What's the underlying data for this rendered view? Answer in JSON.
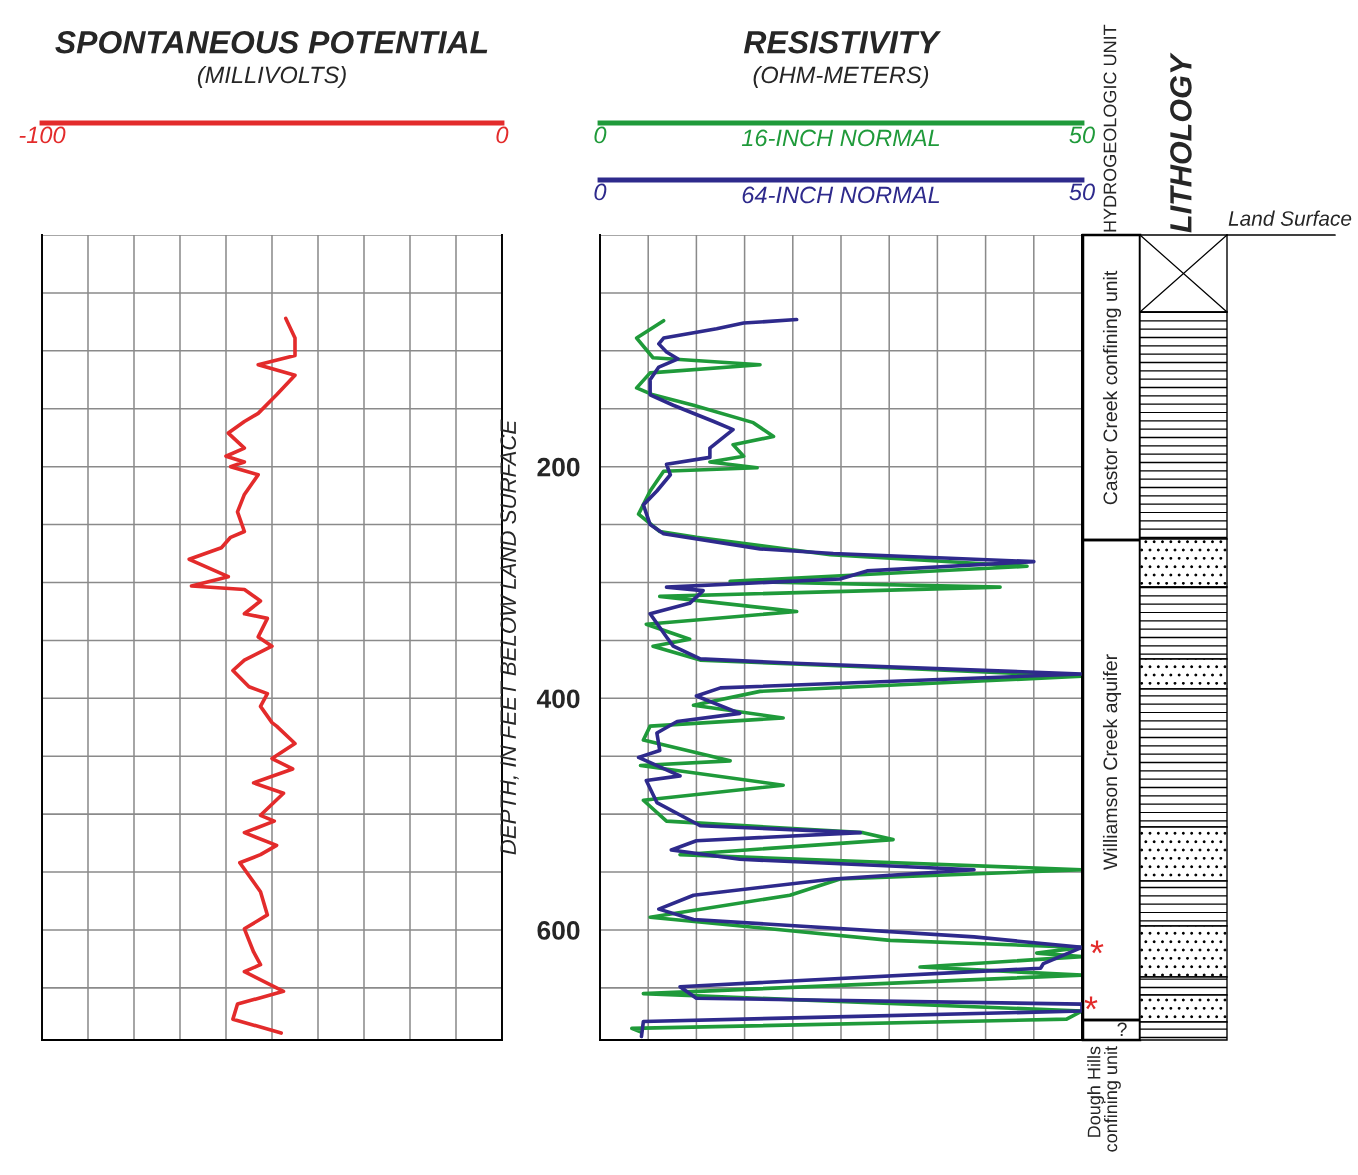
{
  "chart_data": [
    {
      "type": "line",
      "title": "SPONTANEOUS POTENTIAL",
      "subtitle": "(MILLIVOLTS)",
      "orientation": "horizontal",
      "xlim": [
        -100,
        0
      ],
      "xticks": [
        -100,
        {
          "value": -90,
          "label": null
        },
        {
          "value": -80,
          "label": null
        },
        {
          "value": -70,
          "label": null
        },
        {
          "value": -60,
          "label": null
        },
        {
          "value": -50,
          "label": null
        },
        {
          "value": -40,
          "label": null
        },
        {
          "value": -30,
          "label": null
        },
        {
          "value": -20,
          "label": null
        },
        {
          "value": -10,
          "label": null
        },
        0
      ],
      "ylim": [
        695,
        0
      ],
      "yticks": [
        {
          "value": 0,
          "label": null
        },
        {
          "value": 50,
          "label": null
        },
        {
          "value": 100,
          "label": null
        },
        {
          "value": 150,
          "label": null
        },
        {
          "value": 200,
          "label": null
        },
        {
          "value": 250,
          "label": null
        },
        {
          "value": 300,
          "label": null
        },
        {
          "value": 350,
          "label": null
        },
        {
          "value": 400,
          "label": null
        },
        {
          "value": 450,
          "label": null
        },
        {
          "value": 500,
          "label": null
        },
        {
          "value": 550,
          "label": null
        },
        {
          "value": 600,
          "label": null
        },
        {
          "value": 650,
          "label": null
        }
      ],
      "grid": true,
      "tick_labels": "x",
      "series": [
        {
          "color": "#e32b2b",
          "x": [
            72,
            89,
            104,
            112,
            121,
            138,
            154,
            161,
            171,
            184,
            191,
            196,
            200,
            207,
            224,
            239,
            256,
            261,
            270,
            280,
            295,
            303,
            306,
            316,
            327,
            331,
            347,
            355,
            367,
            376,
            390,
            396,
            407,
            421,
            424,
            439,
            452,
            461,
            473,
            482,
            501,
            506,
            516,
            527,
            535,
            542,
            567,
            587,
            599,
            619,
            630,
            636,
            653,
            664,
            677,
            689
          ],
          "values": [
            -47,
            -45,
            -45,
            -53,
            -45,
            -49,
            -53,
            -56,
            -59.5,
            -56,
            -60,
            -56,
            -59,
            -53,
            -56,
            -57.5,
            -56,
            -59,
            -61,
            -68,
            -59.5,
            -67.5,
            -56,
            -52.5,
            -56,
            -51,
            -53,
            -50,
            -56,
            -58.5,
            -55,
            -51,
            -52.5,
            -50,
            -49,
            -45,
            -50,
            -45.5,
            -54,
            -47.5,
            -52.5,
            -49.5,
            -56,
            -49,
            -52.5,
            -57,
            -52.5,
            -51,
            -56,
            -54,
            -52.5,
            -56,
            -47.5,
            -57.5,
            -58.5,
            -48
          ]
        }
      ]
    },
    {
      "type": "line",
      "title": "RESISTIVITY",
      "subtitle": "(OHM-METERS)",
      "ylabel": "DEPTH, IN FEET BELOW LAND SURFACE",
      "orientation": "horizontal",
      "xlim": [
        0,
        50
      ],
      "xticks": [
        0,
        {
          "value": 5,
          "label": null
        },
        {
          "value": 10,
          "label": null
        },
        {
          "value": 15,
          "label": null
        },
        {
          "value": 20,
          "label": null
        },
        {
          "value": 25,
          "label": null
        },
        {
          "value": 30,
          "label": null
        },
        {
          "value": 35,
          "label": null
        },
        {
          "value": 40,
          "label": null
        },
        {
          "value": 45,
          "label": null
        },
        50
      ],
      "x2lim": [
        0,
        50
      ],
      "x2ticks": [
        0,
        50
      ],
      "ylim": [
        695,
        0
      ],
      "yticks": [
        {
          "value": 0,
          "label": null
        },
        {
          "value": 50,
          "label": null
        },
        {
          "value": 100,
          "label": null
        },
        {
          "value": 150,
          "label": null
        },
        200,
        {
          "value": 250,
          "label": null
        },
        {
          "value": 300,
          "label": null
        },
        {
          "value": 350,
          "label": null
        },
        400,
        {
          "value": 450,
          "label": null
        },
        {
          "value": 500,
          "label": null
        },
        {
          "value": 550,
          "label": null
        },
        600,
        {
          "value": 650,
          "label": null
        }
      ],
      "grid": true,
      "series": [
        {
          "name": "16-INCH NORMAL",
          "color": "#1f9a3a",
          "x": [
            74,
            89,
            106,
            112,
            119,
            132,
            138,
            147,
            162,
            174,
            181,
            191,
            196,
            201,
            204,
            221,
            241,
            256,
            261,
            276,
            286,
            299,
            304,
            312,
            325,
            336,
            349,
            355,
            367,
            374,
            381,
            394,
            406,
            417,
            424,
            436,
            454,
            458,
            475,
            488,
            506,
            516,
            522,
            535,
            548,
            556,
            570,
            589,
            609,
            615,
            620,
            623,
            632,
            639,
            655,
            670,
            677,
            685,
            688
          ],
          "values": [
            6.6,
            3.8,
            5.5,
            16.6,
            5.2,
            3.8,
            5.5,
            9.7,
            15.9,
            18,
            13.8,
            14.9,
            11.4,
            16.3,
            6.6,
            5.2,
            4,
            6.2,
            10,
            23.9,
            44.3,
            13.5,
            41.5,
            6.2,
            20.4,
            4.8,
            9.3,
            5.5,
            10.4,
            31.1,
            50,
            16.6,
            9.7,
            19,
            5.2,
            4.5,
            13.5,
            4.2,
            19,
            4.5,
            6.9,
            27.3,
            30.4,
            8.3,
            50,
            24.9,
            19.7,
            5.2,
            30.1,
            50,
            45.3,
            50,
            33.2,
            50,
            4.5,
            50,
            48.4,
            3.3,
            4.2
          ]
        },
        {
          "name": "64-INCH NORMAL",
          "color": "#2e2a8c",
          "axis": "x2",
          "x": [
            73,
            76,
            81,
            89,
            94,
            101,
            107,
            114,
            125,
            138,
            147,
            161,
            168,
            184,
            192,
            198,
            207,
            221,
            233,
            250,
            258,
            271,
            275,
            282,
            290,
            297,
            304,
            307,
            318,
            327,
            347,
            355,
            366,
            370,
            379,
            391,
            398,
            413,
            420,
            430,
            445,
            451,
            467,
            471,
            490,
            510,
            516,
            523,
            531,
            539,
            548,
            556,
            570,
            582,
            591,
            606,
            615,
            629,
            633,
            649,
            659,
            664,
            670,
            679,
            692
          ],
          "values": [
            20.4,
            14.9,
            12.1,
            6.6,
            6.1,
            6.9,
            8.1,
            6.1,
            5.2,
            5.2,
            7.6,
            11.8,
            13.8,
            11.4,
            11.4,
            6.9,
            7.3,
            5.9,
            4.5,
            5.2,
            6.6,
            16.6,
            24.2,
            45,
            27.7,
            24.9,
            6.9,
            10.7,
            9.3,
            5.2,
            6.9,
            7.6,
            10.4,
            20.8,
            50,
            12.5,
            10,
            14.5,
            8,
            5.9,
            6.2,
            4,
            8.3,
            4.8,
            5.9,
            10.4,
            27,
            10,
            7.4,
            14.5,
            38.8,
            24.2,
            9.7,
            6.1,
            9.7,
            38.8,
            50,
            46,
            45.7,
            8.3,
            10,
            50,
            50,
            4.5,
            4.3
          ]
        }
      ]
    },
    {
      "type": "other",
      "title": "HYDROGEOLOGIC UNIT",
      "annotations": [
        "Castor Creek confining unit",
        "Williamson Creek aquifer",
        "Dough Hills confining unit",
        "*",
        "*",
        "?"
      ]
    },
    {
      "type": "other",
      "title": "LITHOLOGY",
      "annotations": [
        "Land Surface"
      ]
    }
  ]
}
